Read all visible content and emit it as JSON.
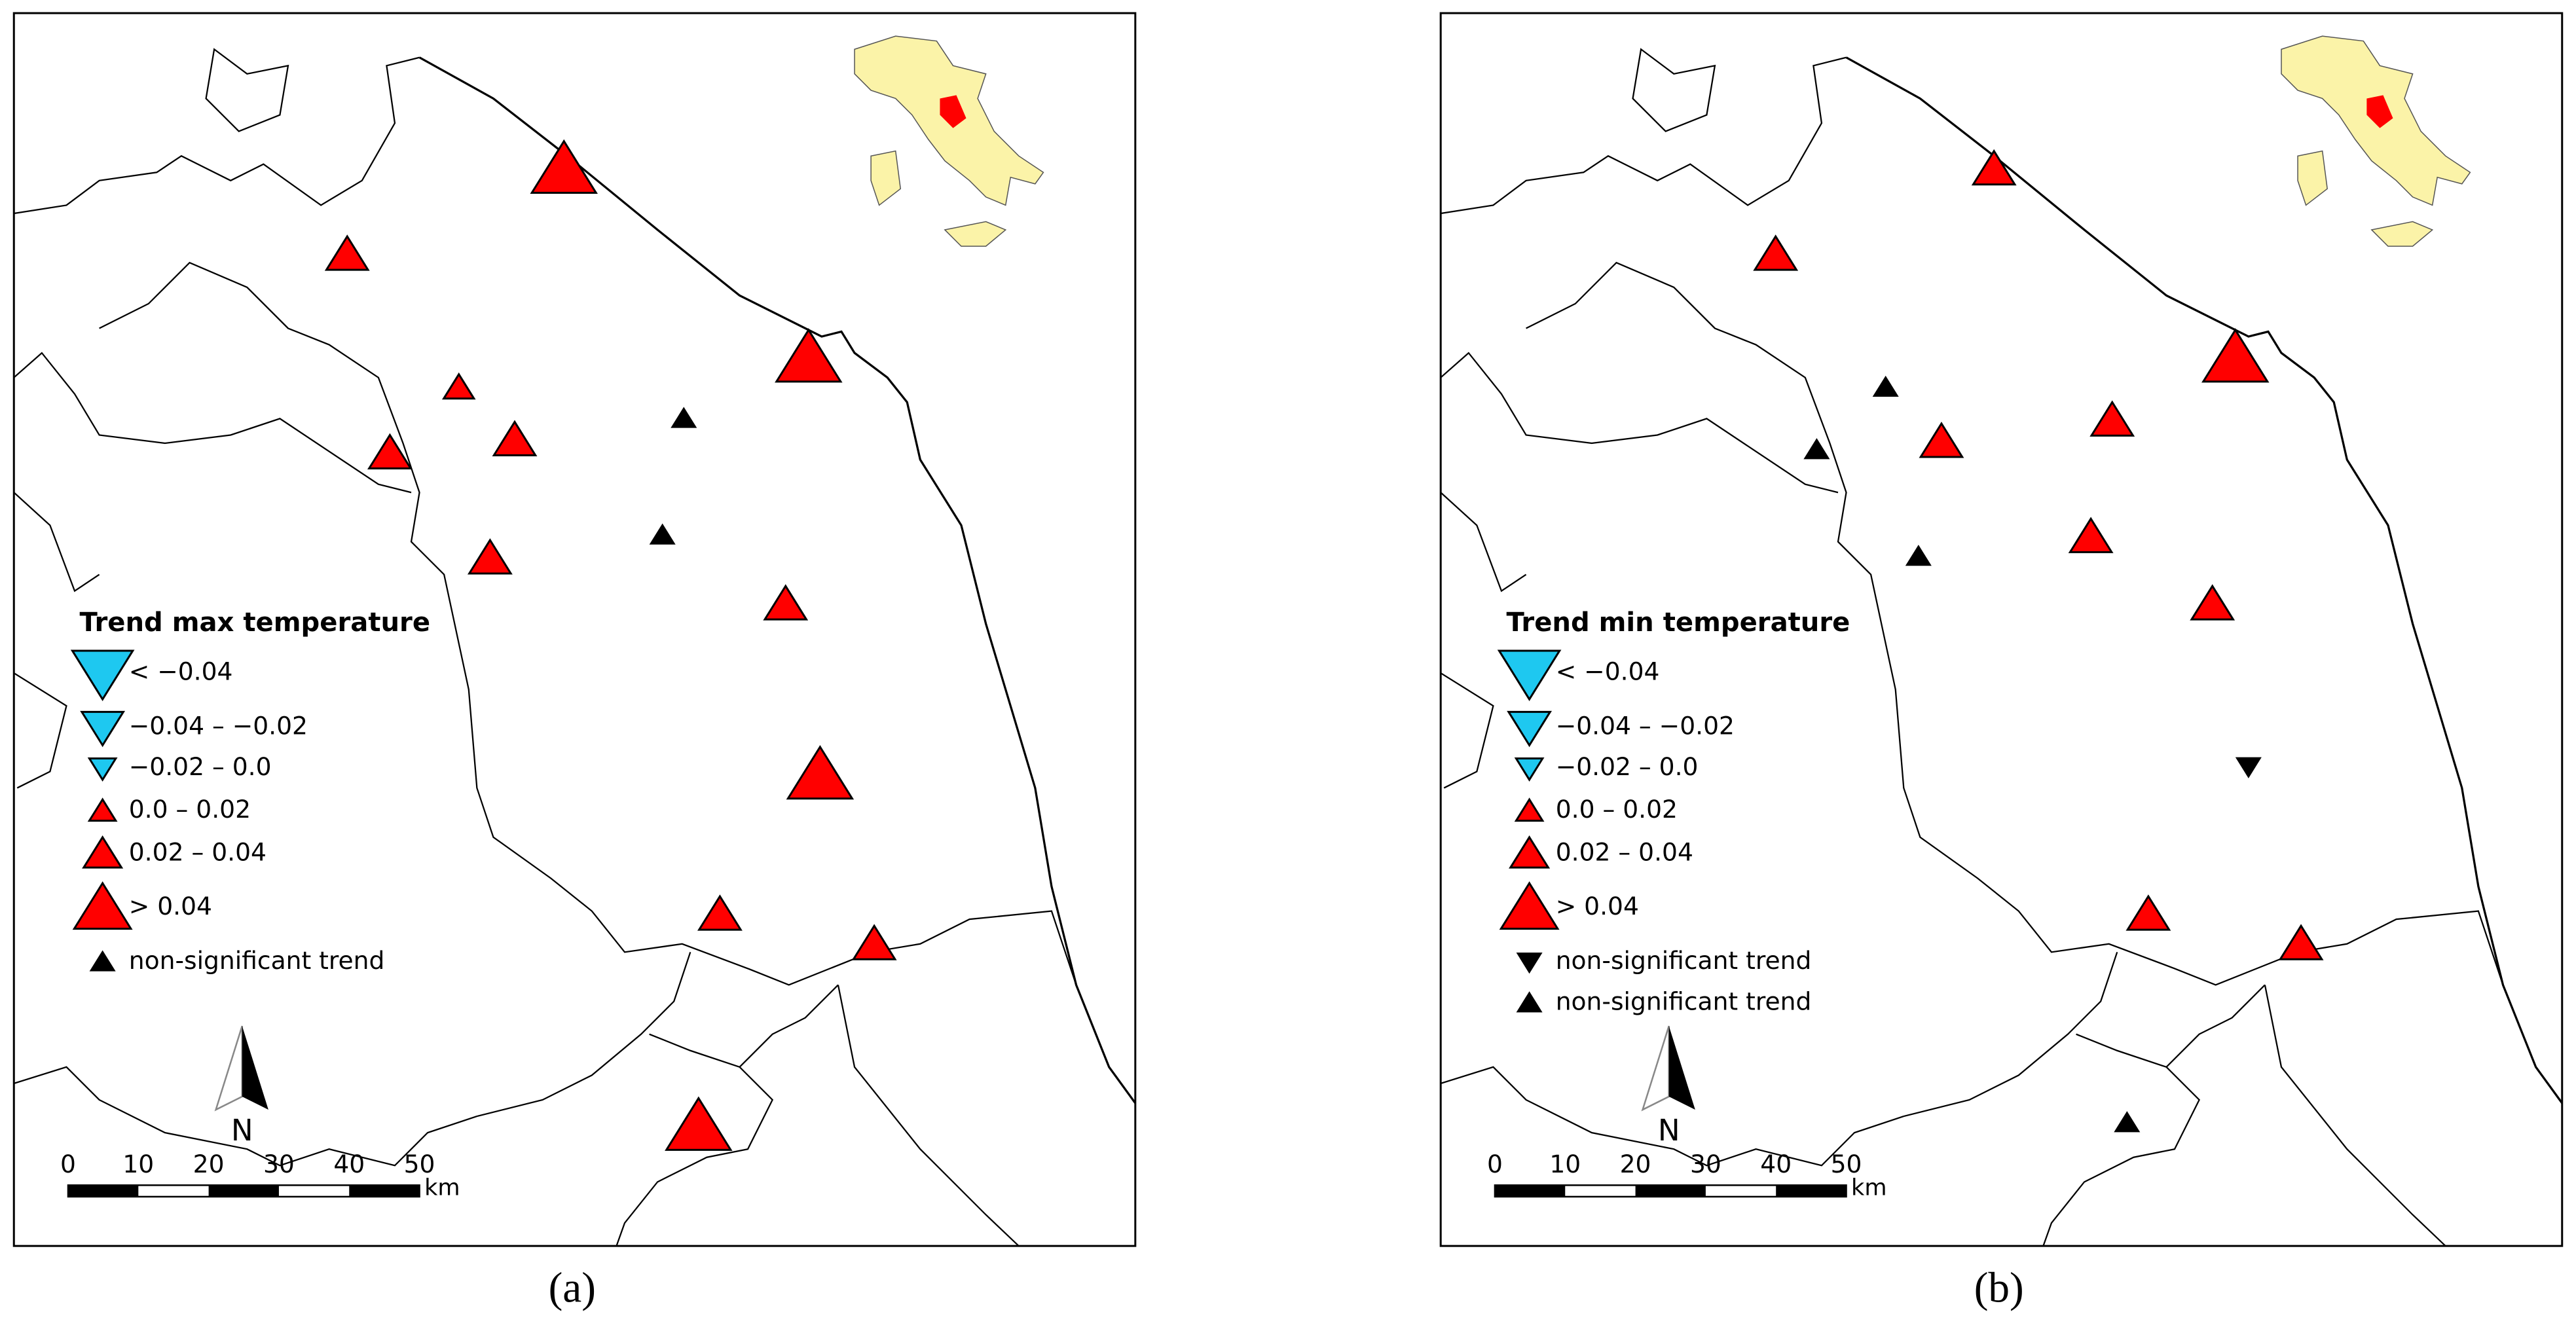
{
  "panels": [
    {
      "caption": "(a)",
      "legend": {
        "title": "Trend max temperature",
        "items": [
          "< −0.04",
          "−0.04 – −0.02",
          "−0.02 – 0.0",
          "0.0 – 0.02",
          "0.02 – 0.04",
          "> 0.04",
          "non-significant trend"
        ]
      },
      "north": "N",
      "scale": {
        "ticks": [
          0,
          10,
          20,
          30,
          40,
          50
        ],
        "unit": "km"
      }
    },
    {
      "caption": "(b)",
      "legend": {
        "title": "Trend min temperature",
        "items": [
          "< −0.04",
          "−0.04 – −0.02",
          "−0.02 – 0.0",
          "0.0 – 0.02",
          "0.02 – 0.04",
          "> 0.04",
          "non-significant trend",
          "non-significant trend"
        ]
      },
      "north": "N",
      "scale": {
        "ticks": [
          0,
          10,
          20,
          30,
          40,
          50
        ],
        "unit": "km"
      }
    }
  ]
}
